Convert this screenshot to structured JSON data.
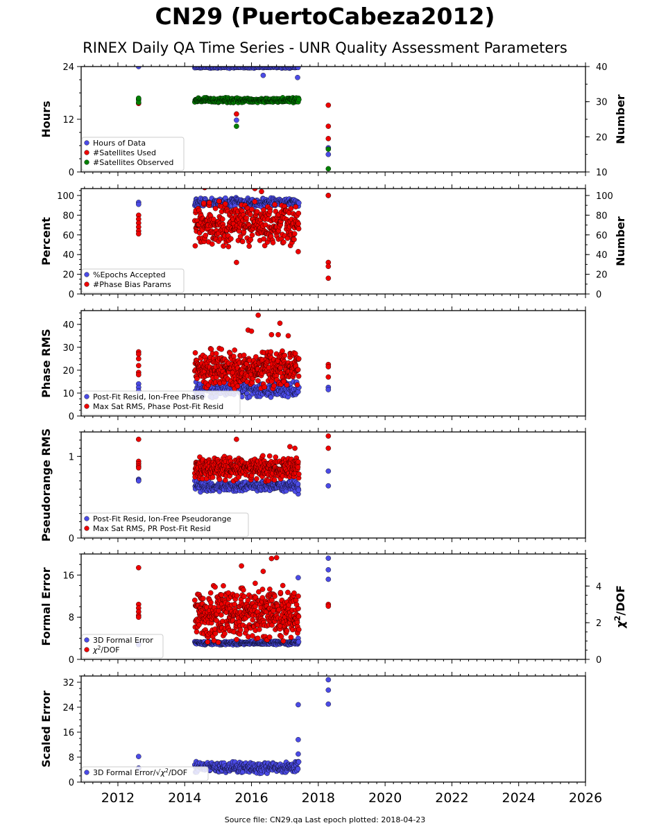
{
  "title": "CN29 (PuertoCabeza2012)",
  "subtitle": "RINEX Daily QA Time Series - UNR Quality Assessment Parameters",
  "footer": "Source file: CN29.qa Last epoch plotted: 2018-04-23",
  "colors": {
    "blue": "#4b4be6",
    "red": "#ee0000",
    "green": "#008000"
  },
  "chart_data": [
    {
      "type": "scatter",
      "panel": 1,
      "xlim": [
        2010.9,
        2026.0
      ],
      "xticks": [
        2012,
        2014,
        2016,
        2018,
        2020,
        2022,
        2024,
        2026
      ],
      "ylabel": "Hours",
      "ylim": [
        0,
        24
      ],
      "yticks": [
        0,
        12,
        24
      ],
      "y2label": "Number",
      "y2lim": [
        10,
        40
      ],
      "y2ticks": [
        10,
        20,
        30,
        40
      ],
      "legend_position": "lower-left",
      "series": [
        {
          "name": "Hours of Data",
          "axis": "left",
          "color": "blue",
          "points": [
            [
              2012.62,
              24.0
            ],
            [
              2014.4,
              24.0
            ],
            [
              2015.0,
              24.0
            ],
            [
              2015.6,
              24.0
            ],
            [
              2016.2,
              24.0
            ],
            [
              2016.35,
              22.0
            ],
            [
              2016.9,
              24.0
            ],
            [
              2017.38,
              24.0
            ],
            [
              2017.38,
              21.5
            ],
            [
              2015.55,
              11.8
            ],
            [
              2018.3,
              4.0
            ],
            [
              2018.3,
              5.5
            ]
          ],
          "gen": [
            {
              "x0": 2014.3,
              "x1": 2017.42,
              "n": 120,
              "ymin": 23.6,
              "ymax": 24.0,
              "seed": 11
            }
          ]
        },
        {
          "name": "#Satellites Used",
          "axis": "right",
          "color": "red",
          "points": [
            [
              2012.62,
              30.8
            ],
            [
              2012.62,
              29.5
            ],
            [
              2015.55,
              26.5
            ],
            [
              2018.3,
              29.0
            ],
            [
              2018.3,
              23.0
            ],
            [
              2018.3,
              19.5
            ]
          ],
          "gen": []
        },
        {
          "name": "#Satellites Observed",
          "axis": "right",
          "color": "green",
          "points": [
            [
              2012.62,
              30.5
            ],
            [
              2012.62,
              29.8
            ],
            [
              2012.62,
              31.0
            ],
            [
              2015.55,
              23.0
            ],
            [
              2018.3,
              10.9
            ],
            [
              2018.3,
              16.5
            ]
          ],
          "gen": [
            {
              "x0": 2014.3,
              "x1": 2017.42,
              "n": 300,
              "ymin": 29.6,
              "ymax": 31.2,
              "seed": 12
            }
          ]
        }
      ]
    },
    {
      "type": "scatter",
      "panel": 2,
      "xlim": [
        2010.9,
        2026.0
      ],
      "xticks": [
        2012,
        2014,
        2016,
        2018,
        2020,
        2022,
        2024,
        2026
      ],
      "ylabel": "Percent",
      "ylim": [
        0,
        107
      ],
      "yticks": [
        0,
        20,
        40,
        60,
        80,
        100
      ],
      "y2label": "Number",
      "y2lim": [
        0,
        107
      ],
      "y2ticks": [
        0,
        20,
        40,
        60,
        80,
        100
      ],
      "legend_position": "lower-left",
      "series": [
        {
          "name": "%Epochs Accepted",
          "axis": "left",
          "color": "blue",
          "points": [
            [
              2012.62,
              93
            ],
            [
              2012.62,
              91
            ],
            [
              2018.3,
              100
            ],
            [
              2017.38,
              91
            ]
          ],
          "gen": [
            {
              "x0": 2014.3,
              "x1": 2017.42,
              "n": 300,
              "ymin": 88,
              "ymax": 98,
              "seed": 21
            }
          ]
        },
        {
          "name": "#Phase Bias Params",
          "axis": "right",
          "color": "red",
          "points": [
            [
              2012.62,
              80
            ],
            [
              2012.62,
              76
            ],
            [
              2012.62,
              72
            ],
            [
              2012.62,
              68
            ],
            [
              2012.62,
              64
            ],
            [
              2012.62,
              61
            ],
            [
              2015.55,
              32
            ],
            [
              2018.3,
              100
            ],
            [
              2018.3,
              32
            ],
            [
              2018.3,
              28
            ],
            [
              2018.3,
              16
            ],
            [
              2014.6,
              108
            ],
            [
              2016.1,
              107
            ],
            [
              2016.3,
              104
            ],
            [
              2017.4,
              43
            ]
          ],
          "gen": [
            {
              "x0": 2014.3,
              "x1": 2017.42,
              "n": 360,
              "ymin": 46,
              "ymax": 95,
              "seed": 22
            }
          ]
        }
      ]
    },
    {
      "type": "scatter",
      "panel": 3,
      "xlim": [
        2010.9,
        2026.0
      ],
      "xticks": [
        2012,
        2014,
        2016,
        2018,
        2020,
        2022,
        2024,
        2026
      ],
      "ylabel": "Phase RMS",
      "ylim": [
        0,
        46
      ],
      "yticks": [
        0,
        10,
        20,
        30,
        40
      ],
      "legend_position": "lower-left",
      "series": [
        {
          "name": "Post-Fit Resid, Ion-Free Phase",
          "axis": "left",
          "color": "blue",
          "points": [
            [
              2012.62,
              14.0
            ],
            [
              2012.62,
              12.5
            ],
            [
              2012.62,
              11.0
            ],
            [
              2018.3,
              12.5
            ],
            [
              2018.3,
              11.5
            ]
          ],
          "gen": [
            {
              "x0": 2014.3,
              "x1": 2017.42,
              "n": 260,
              "ymin": 7.5,
              "ymax": 15.5,
              "seed": 31
            }
          ]
        },
        {
          "name": "Max Sat RMS, Phase Post-Fit Resid",
          "axis": "left",
          "color": "red",
          "points": [
            [
              2012.62,
              28
            ],
            [
              2012.62,
              27
            ],
            [
              2012.62,
              25
            ],
            [
              2012.62,
              22
            ],
            [
              2012.62,
              19
            ],
            [
              2012.62,
              18
            ],
            [
              2016.2,
              44
            ],
            [
              2016.85,
              40.5
            ],
            [
              2015.9,
              37.5
            ],
            [
              2016.0,
              37
            ],
            [
              2016.6,
              35.5
            ],
            [
              2016.8,
              35.5
            ],
            [
              2017.1,
              35
            ],
            [
              2018.3,
              22.5
            ],
            [
              2018.3,
              21.5
            ],
            [
              2018.3,
              17
            ]
          ],
          "gen": [
            {
              "x0": 2014.3,
              "x1": 2017.42,
              "n": 420,
              "ymin": 11,
              "ymax": 30,
              "seed": 32
            }
          ]
        }
      ]
    },
    {
      "type": "scatter",
      "panel": 4,
      "xlim": [
        2010.9,
        2026.0
      ],
      "xticks": [
        2012,
        2014,
        2016,
        2018,
        2020,
        2022,
        2024,
        2026
      ],
      "ylabel": "Pseudorange RMS",
      "ylim": [
        0,
        1.3
      ],
      "yticks": [
        0,
        1
      ],
      "legend_position": "lower-left",
      "series": [
        {
          "name": "Post-Fit Resid, Ion-Free Pseudorange",
          "axis": "left",
          "color": "blue",
          "points": [
            [
              2012.62,
              0.72
            ],
            [
              2012.62,
              0.71
            ],
            [
              2012.62,
              0.7
            ],
            [
              2018.3,
              0.82
            ],
            [
              2018.3,
              0.64
            ],
            [
              2017.4,
              0.54
            ],
            [
              2017.4,
              0.59
            ]
          ],
          "gen": [
            {
              "x0": 2014.3,
              "x1": 2017.42,
              "n": 300,
              "ymin": 0.56,
              "ymax": 0.71,
              "seed": 41
            }
          ]
        },
        {
          "name": "Max Sat RMS, PR Post-Fit Resid",
          "axis": "left",
          "color": "red",
          "points": [
            [
              2012.62,
              1.21
            ],
            [
              2012.62,
              0.94
            ],
            [
              2012.62,
              0.91
            ],
            [
              2012.62,
              0.88
            ],
            [
              2012.62,
              0.86
            ],
            [
              2015.55,
              1.21
            ],
            [
              2018.3,
              1.25
            ],
            [
              2018.3,
              1.1
            ],
            [
              2017.15,
              1.12
            ],
            [
              2017.3,
              1.1
            ]
          ],
          "gen": [
            {
              "x0": 2014.3,
              "x1": 2017.42,
              "n": 380,
              "ymin": 0.68,
              "ymax": 1.02,
              "seed": 42
            }
          ]
        }
      ]
    },
    {
      "type": "scatter",
      "panel": 5,
      "xlim": [
        2010.9,
        2026.0
      ],
      "xticks": [
        2012,
        2014,
        2016,
        2018,
        2020,
        2022,
        2024,
        2026
      ],
      "ylabel": "Formal Error",
      "ylim": [
        0,
        20
      ],
      "yticks": [
        0,
        8,
        16
      ],
      "y2label": "χ2/DOF",
      "y2lim": [
        0,
        5.75
      ],
      "y2ticks": [
        0,
        2,
        4
      ],
      "legend_position": "lower-left",
      "series": [
        {
          "name": "3D Formal Error",
          "axis": "left",
          "color": "blue",
          "points": [
            [
              2012.62,
              3.0
            ],
            [
              2012.62,
              2.8
            ],
            [
              2018.3,
              19.2
            ],
            [
              2018.3,
              17.0
            ],
            [
              2018.3,
              15.2
            ],
            [
              2017.4,
              15.5
            ],
            [
              2017.4,
              4.0
            ]
          ],
          "gen": [
            {
              "x0": 2014.3,
              "x1": 2017.42,
              "n": 300,
              "ymin": 2.7,
              "ymax": 3.5,
              "seed": 51
            }
          ]
        },
        {
          "name": "χ2/DOF",
          "axis": "right",
          "color": "red",
          "points": [
            [
              2012.62,
              5.0
            ],
            [
              2012.62,
              3.0
            ],
            [
              2012.62,
              2.8
            ],
            [
              2012.62,
              2.6
            ],
            [
              2012.62,
              2.4
            ],
            [
              2012.62,
              2.3
            ],
            [
              2016.6,
              5.5
            ],
            [
              2016.75,
              5.55
            ],
            [
              2015.7,
              5.1
            ],
            [
              2016.35,
              4.8
            ],
            [
              2018.3,
              3.0
            ],
            [
              2018.3,
              2.9
            ]
          ],
          "gen": [
            {
              "x0": 2014.3,
              "x1": 2017.42,
              "n": 440,
              "ymin": 0.85,
              "ymax": 4.2,
              "seed": 52
            }
          ]
        }
      ]
    },
    {
      "type": "scatter",
      "panel": 6,
      "xlim": [
        2010.9,
        2026.0
      ],
      "xticks": [
        2012,
        2014,
        2016,
        2018,
        2020,
        2022,
        2024,
        2026
      ],
      "xtick_labels": [
        "2012",
        "2014",
        "2016",
        "2018",
        "2020",
        "2022",
        "2024",
        "2026"
      ],
      "ylabel": "Scaled Error",
      "ylim": [
        0,
        34
      ],
      "yticks": [
        0,
        8,
        16,
        24,
        32
      ],
      "legend_position": "lower-left",
      "series": [
        {
          "name": "3D Formal Error/√χ2/DOF",
          "axis": "left",
          "color": "blue",
          "points": [
            [
              2012.62,
              8.2
            ],
            [
              2012.62,
              4.5
            ],
            [
              2017.4,
              24.8
            ],
            [
              2017.4,
              13.6
            ],
            [
              2017.4,
              9.0
            ],
            [
              2018.3,
              32.8
            ],
            [
              2018.3,
              29.5
            ],
            [
              2018.3,
              25.0
            ]
          ],
          "gen": [
            {
              "x0": 2014.3,
              "x1": 2017.42,
              "n": 300,
              "ymin": 2.6,
              "ymax": 6.8,
              "seed": 61
            }
          ]
        }
      ]
    }
  ]
}
